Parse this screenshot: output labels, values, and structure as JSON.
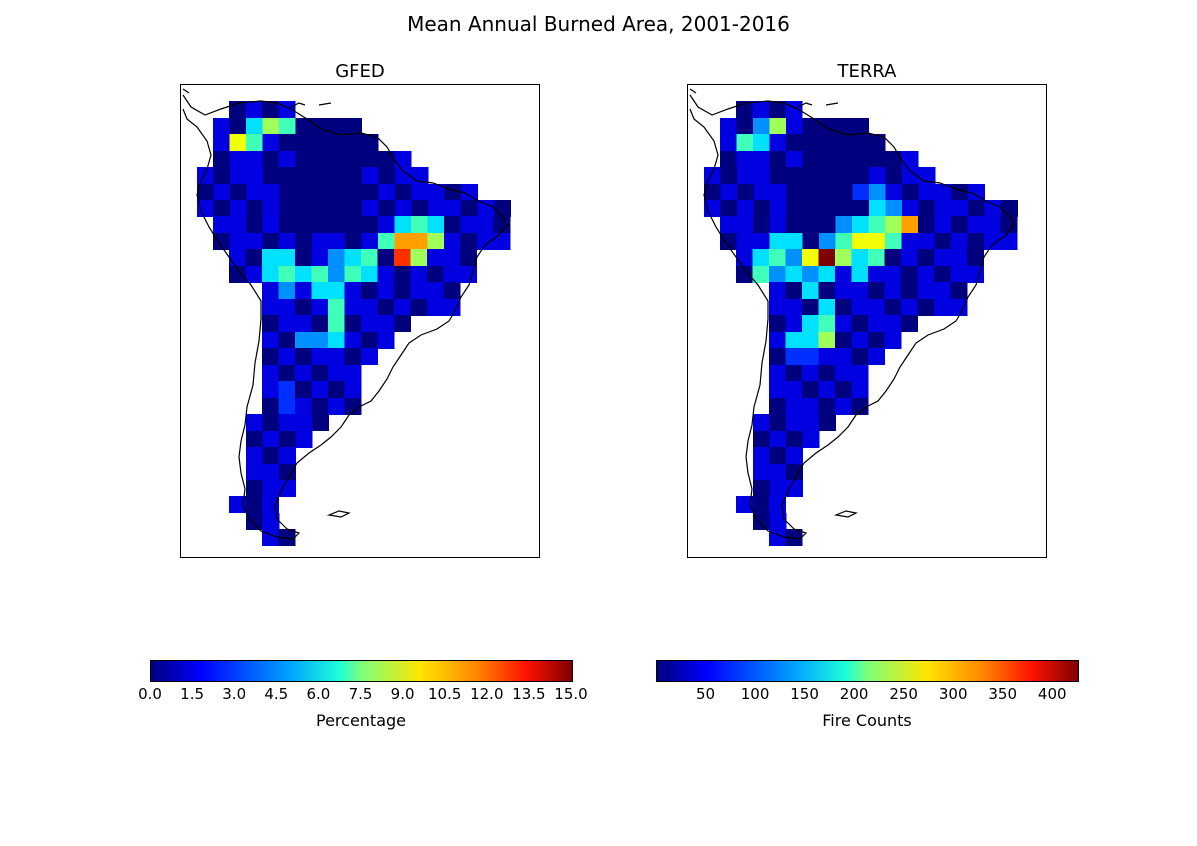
{
  "figure": {
    "title": "Mean Annual Burned Area, 2001-2016"
  },
  "panels": [
    {
      "title": "GFED",
      "colorbar": {
        "label": "Percentage",
        "ticks": [
          "0.0",
          "1.5",
          "3.0",
          "4.5",
          "6.0",
          "7.5",
          "9.0",
          "10.5",
          "12.0",
          "13.5",
          "15.0"
        ],
        "vmin": 0,
        "vmax": 15
      }
    },
    {
      "title": "TERRA",
      "colorbar": {
        "label": "Fire Counts",
        "ticks": [
          "50",
          "100",
          "150",
          "200",
          "250",
          "300",
          "350",
          "400"
        ],
        "vmin": 0,
        "vmax": 425
      }
    }
  ],
  "colormap": "jet",
  "coastline_color": "#000000"
}
